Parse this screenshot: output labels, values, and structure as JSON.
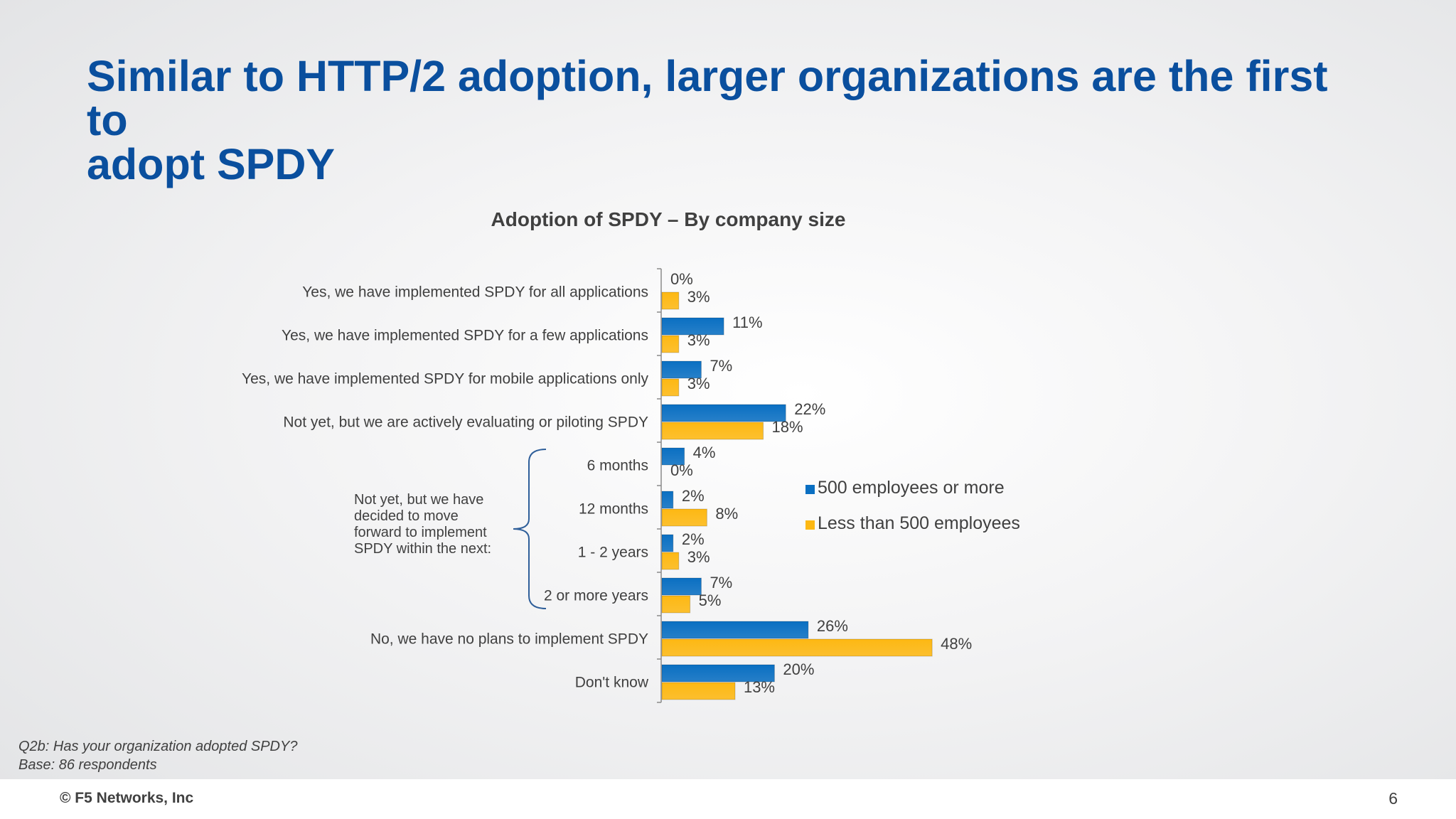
{
  "slide": {
    "title_line1": "Similar to HTTP/2 adoption, larger organizations are the first to",
    "title_line2": "adopt SPDY",
    "footnote_question": "Q2b:  Has your organization adopted SPDY?",
    "footnote_base": "Base: 86 respondents",
    "copyright": "© F5 Networks, Inc",
    "page_number": "6"
  },
  "chart_data": {
    "type": "bar",
    "orientation": "horizontal",
    "title": "Adoption of SPDY – By company size",
    "categories": [
      "Yes, we have implemented SPDY for all applications",
      "Yes, we have implemented SPDY for a few applications",
      "Yes, we have implemented SPDY for mobile applications only",
      "Not yet, but we are actively evaluating or piloting SPDY",
      "6 months",
      "12 months",
      "1 - 2 years",
      "2 or more years",
      "No, we have no plans to implement SPDY",
      "Don't know"
    ],
    "group_label": "Not yet, but we have decided to move forward to implement SPDY within the next:",
    "group_label_lines": [
      "Not yet, but we have",
      "decided to move",
      "forward to implement",
      "SPDY within the next:"
    ],
    "group_range": [
      4,
      7
    ],
    "series": [
      {
        "name": "500 employees or more",
        "color": "#0a6fc2",
        "values": [
          0,
          11,
          7,
          22,
          4,
          2,
          2,
          7,
          26,
          20
        ],
        "labels": [
          "0%",
          "11%",
          "7%",
          "22%",
          "4%",
          "2%",
          "2%",
          "7%",
          "26%",
          "20%"
        ]
      },
      {
        "name": "Less than 500 employees",
        "color": "#fdb813",
        "values": [
          3,
          3,
          3,
          18,
          0,
          8,
          3,
          5,
          48,
          13
        ],
        "labels": [
          "3%",
          "3%",
          "3%",
          "18%",
          "0%",
          "8%",
          "3%",
          "5%",
          "48%",
          "13%"
        ]
      }
    ],
    "value_unit": "%",
    "xlim": [
      0,
      48
    ],
    "grid": false,
    "legend_position": "right"
  }
}
